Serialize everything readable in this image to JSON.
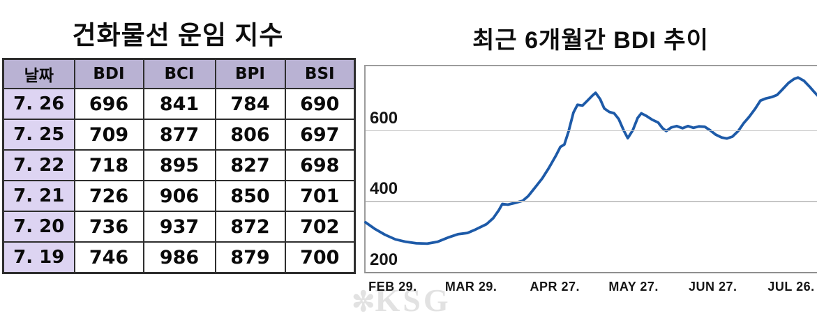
{
  "table_panel": {
    "title": "건화물선 운임 지수",
    "columns": [
      "날짜",
      "BDI",
      "BCI",
      "BPI",
      "BSI"
    ],
    "rows": [
      [
        "7. 26",
        "696",
        "841",
        "784",
        "690"
      ],
      [
        "7. 25",
        "709",
        "877",
        "806",
        "697"
      ],
      [
        "7. 22",
        "718",
        "895",
        "827",
        "698"
      ],
      [
        "7. 21",
        "726",
        "906",
        "850",
        "701"
      ],
      [
        "7. 20",
        "736",
        "937",
        "872",
        "702"
      ],
      [
        "7. 19",
        "746",
        "986",
        "879",
        "700"
      ]
    ],
    "colors": {
      "header_bg": "#b9b2d3",
      "date_col_bg": "#ddd4f2",
      "border": "#2e2e2e"
    }
  },
  "chart_panel": {
    "title": "최근 6개월간 BDI 추이",
    "watermark_icon": "✼",
    "watermark_text": "KSG"
  },
  "chart_data": {
    "type": "line",
    "title": "최근 6개월간 BDI 추이",
    "series_name": "BDI",
    "line_color": "#1d5aa8",
    "grid_color": "#c6c6c6",
    "grid": true,
    "legend": false,
    "ylim": [
      200,
      781
    ],
    "y_ticks": [
      200,
      400,
      600
    ],
    "x_tick_labels": [
      "FEB 29.",
      "MAR 29.",
      "APR 27.",
      "MAY 27.",
      "JUN 27.",
      "JUL 26."
    ],
    "x_tick_pos": [
      0.063,
      0.236,
      0.421,
      0.595,
      0.77,
      0.943
    ],
    "points": [
      [
        0.0,
        340
      ],
      [
        0.02,
        322
      ],
      [
        0.043,
        305
      ],
      [
        0.066,
        292
      ],
      [
        0.089,
        285
      ],
      [
        0.112,
        281
      ],
      [
        0.136,
        280
      ],
      [
        0.159,
        285
      ],
      [
        0.182,
        297
      ],
      [
        0.205,
        307
      ],
      [
        0.225,
        310
      ],
      [
        0.243,
        320
      ],
      [
        0.267,
        335
      ],
      [
        0.282,
        352
      ],
      [
        0.294,
        374
      ],
      [
        0.302,
        392
      ],
      [
        0.314,
        390
      ],
      [
        0.33,
        395
      ],
      [
        0.347,
        401
      ],
      [
        0.359,
        414
      ],
      [
        0.374,
        438
      ],
      [
        0.39,
        464
      ],
      [
        0.405,
        494
      ],
      [
        0.421,
        530
      ],
      [
        0.43,
        553
      ],
      [
        0.439,
        560
      ],
      [
        0.448,
        596
      ],
      [
        0.459,
        650
      ],
      [
        0.468,
        672
      ],
      [
        0.479,
        670
      ],
      [
        0.49,
        684
      ],
      [
        0.501,
        698
      ],
      [
        0.508,
        706
      ],
      [
        0.518,
        688
      ],
      [
        0.527,
        662
      ],
      [
        0.538,
        652
      ],
      [
        0.549,
        648
      ],
      [
        0.559,
        632
      ],
      [
        0.57,
        600
      ],
      [
        0.579,
        578
      ],
      [
        0.59,
        600
      ],
      [
        0.601,
        635
      ],
      [
        0.609,
        648
      ],
      [
        0.621,
        640
      ],
      [
        0.633,
        630
      ],
      [
        0.646,
        622
      ],
      [
        0.656,
        606
      ],
      [
        0.664,
        598
      ],
      [
        0.675,
        608
      ],
      [
        0.687,
        612
      ],
      [
        0.7,
        606
      ],
      [
        0.712,
        612
      ],
      [
        0.724,
        607
      ],
      [
        0.736,
        611
      ],
      [
        0.749,
        610
      ],
      [
        0.761,
        600
      ],
      [
        0.773,
        588
      ],
      [
        0.786,
        580
      ],
      [
        0.798,
        577
      ],
      [
        0.81,
        582
      ],
      [
        0.823,
        598
      ],
      [
        0.835,
        620
      ],
      [
        0.847,
        638
      ],
      [
        0.86,
        660
      ],
      [
        0.872,
        684
      ],
      [
        0.884,
        690
      ],
      [
        0.897,
        694
      ],
      [
        0.909,
        700
      ],
      [
        0.921,
        716
      ],
      [
        0.934,
        734
      ],
      [
        0.946,
        745
      ],
      [
        0.955,
        749
      ],
      [
        0.968,
        740
      ],
      [
        0.98,
        724
      ],
      [
        0.991,
        708
      ],
      [
        1.0,
        696
      ]
    ]
  }
}
